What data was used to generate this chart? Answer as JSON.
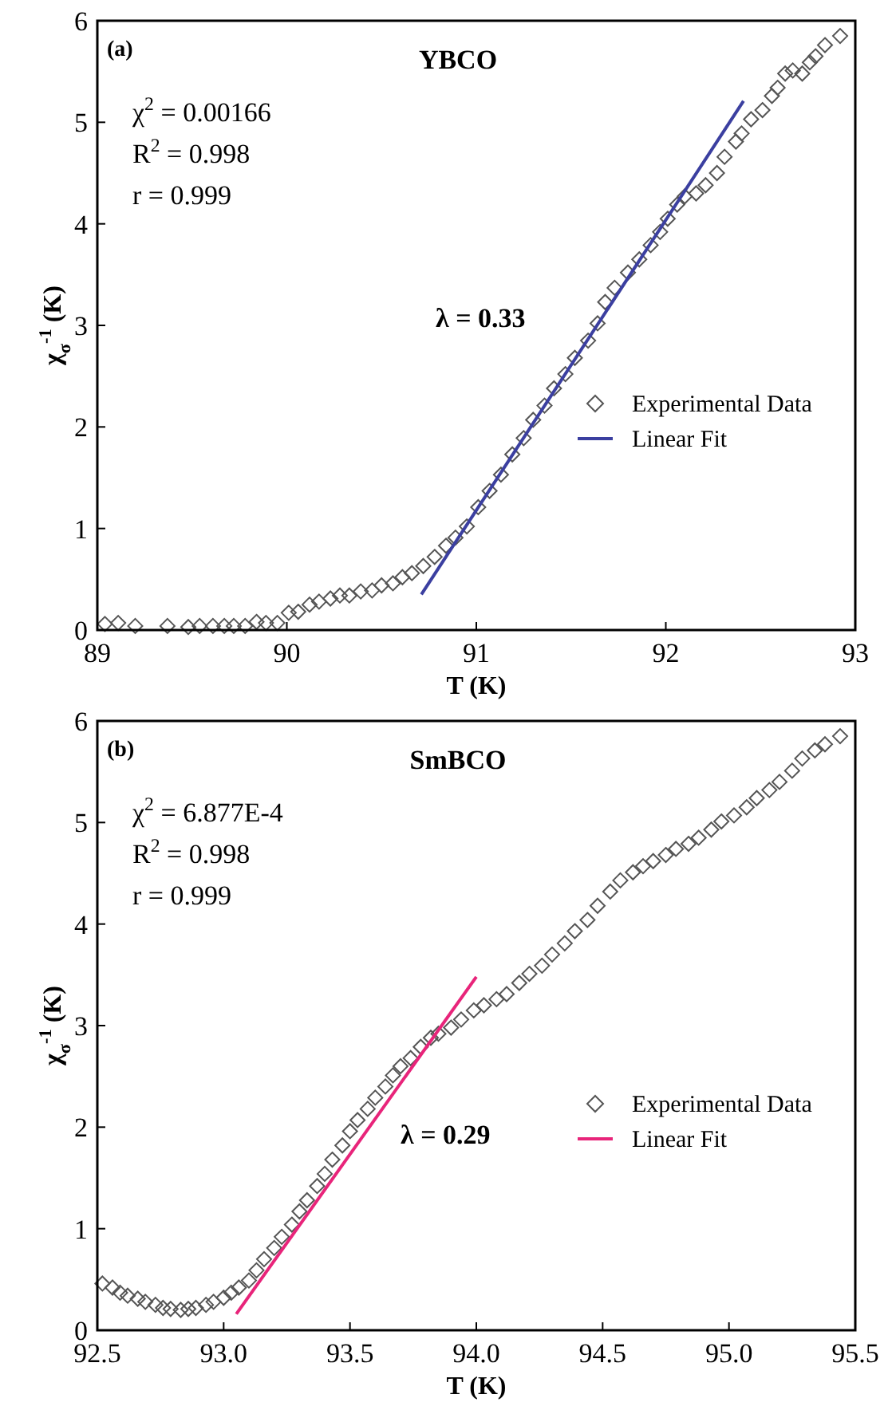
{
  "chart_data": [
    {
      "type": "scatter",
      "title": "YBCO",
      "xlabel": "T (K)",
      "ylabel": "χ$_{σ}$$^{-1}$ (K)",
      "xlim": [
        89,
        93
      ],
      "xticks": [
        89,
        90,
        91,
        92,
        93
      ],
      "ylim": [
        0,
        6
      ],
      "yticks": [
        0,
        1,
        2,
        3,
        4,
        5,
        6
      ],
      "grid": false,
      "legend": "right",
      "annotations": [
        "(a)",
        "χ$^{2}$ = 0.00166",
        "R$^{2}$ = 0.998",
        "r = 0.999",
        "λ = 0.33"
      ],
      "series": [
        {
          "name": "Experimental Data",
          "marker": "diamond",
          "color": "#555555",
          "x": [
            89.04,
            89.11,
            89.2,
            89.37,
            89.48,
            89.54,
            89.61,
            89.67,
            89.72,
            89.78,
            89.84,
            89.89,
            89.95,
            90.01,
            90.06,
            90.12,
            90.17,
            90.23,
            90.28,
            90.33,
            90.39,
            90.45,
            90.5,
            90.56,
            90.61,
            90.66,
            90.72,
            90.78,
            90.84,
            90.89,
            90.95,
            91.01,
            91.07,
            91.13,
            91.19,
            91.25,
            91.3,
            91.36,
            91.41,
            91.47,
            91.52,
            91.59,
            91.64,
            91.68,
            91.73,
            91.8,
            91.86,
            91.92,
            91.97,
            92.01,
            92.06,
            92.1,
            92.16,
            92.21,
            92.27,
            92.31,
            92.37,
            92.4,
            92.45,
            92.51,
            92.56,
            92.59,
            92.63,
            92.67,
            92.72,
            92.76,
            92.79,
            92.84,
            92.92
          ],
          "values": [
            0.06,
            0.07,
            0.04,
            0.04,
            0.03,
            0.04,
            0.04,
            0.04,
            0.04,
            0.04,
            0.08,
            0.07,
            0.07,
            0.17,
            0.18,
            0.25,
            0.28,
            0.31,
            0.34,
            0.34,
            0.38,
            0.39,
            0.44,
            0.46,
            0.52,
            0.56,
            0.63,
            0.72,
            0.83,
            0.91,
            1.02,
            1.21,
            1.37,
            1.53,
            1.73,
            1.89,
            2.07,
            2.21,
            2.38,
            2.52,
            2.68,
            2.85,
            3.02,
            3.23,
            3.37,
            3.52,
            3.65,
            3.79,
            3.92,
            4.05,
            4.19,
            4.27,
            4.3,
            4.38,
            4.5,
            4.66,
            4.81,
            4.89,
            5.03,
            5.12,
            5.26,
            5.34,
            5.48,
            5.51,
            5.48,
            5.59,
            5.65,
            5.76,
            5.85
          ]
        },
        {
          "name": "Linear Fit",
          "type": "line",
          "line_style": "solid",
          "color": "#3b3fa0",
          "x": [
            90.71,
            92.41
          ],
          "values": [
            0.35,
            5.21
          ]
        }
      ]
    },
    {
      "type": "scatter",
      "title": "SmBCO",
      "xlabel": "T (K)",
      "ylabel": "χ$_{σ}$$^{-1}$ (K)",
      "xlim": [
        92.5,
        95.5
      ],
      "xticks": [
        92.5,
        {
          "value": 93,
          "label": "93.0"
        },
        93.5,
        {
          "value": 94,
          "label": "94.0"
        },
        94.5,
        {
          "value": 95,
          "label": "95.0"
        },
        95.5
      ],
      "ylim": [
        0,
        6
      ],
      "yticks": [
        0,
        1,
        2,
        3,
        4,
        5,
        6
      ],
      "grid": false,
      "legend": "right",
      "annotations": [
        "(b)",
        "χ$^{2}$ = 6.877E-4",
        "R$^{2}$ = 0.998",
        "r = 0.999",
        "λ = 0.29"
      ],
      "series": [
        {
          "name": "Experimental Data",
          "marker": "diamond",
          "color": "#555555",
          "x": [
            92.52,
            92.56,
            92.59,
            92.62,
            92.66,
            92.69,
            92.73,
            92.76,
            92.79,
            92.83,
            92.86,
            92.89,
            92.93,
            92.96,
            93.0,
            93.03,
            93.06,
            93.1,
            93.13,
            93.16,
            93.2,
            93.23,
            93.27,
            93.3,
            93.33,
            93.37,
            93.4,
            93.43,
            93.47,
            93.5,
            93.53,
            93.57,
            93.6,
            93.64,
            93.67,
            93.7,
            93.74,
            93.78,
            93.82,
            93.85,
            93.9,
            93.94,
            93.99,
            94.03,
            94.08,
            94.12,
            94.17,
            94.21,
            94.26,
            94.3,
            94.35,
            94.39,
            94.44,
            94.48,
            94.53,
            94.57,
            94.62,
            94.66,
            94.7,
            94.75,
            94.79,
            94.84,
            94.88,
            94.93,
            94.97,
            95.02,
            95.07,
            95.11,
            95.16,
            95.2,
            95.25,
            95.29,
            95.34,
            95.38,
            95.44
          ],
          "values": [
            0.46,
            0.42,
            0.37,
            0.34,
            0.31,
            0.28,
            0.25,
            0.22,
            0.21,
            0.2,
            0.21,
            0.22,
            0.25,
            0.28,
            0.32,
            0.37,
            0.42,
            0.49,
            0.59,
            0.7,
            0.81,
            0.92,
            1.04,
            1.17,
            1.28,
            1.42,
            1.54,
            1.68,
            1.82,
            1.96,
            2.07,
            2.18,
            2.29,
            2.4,
            2.51,
            2.6,
            2.68,
            2.79,
            2.88,
            2.92,
            2.98,
            3.06,
            3.15,
            3.2,
            3.26,
            3.31,
            3.42,
            3.51,
            3.59,
            3.7,
            3.81,
            3.93,
            4.04,
            4.18,
            4.32,
            4.43,
            4.51,
            4.57,
            4.62,
            4.68,
            4.74,
            4.79,
            4.85,
            4.93,
            5.01,
            5.07,
            5.15,
            5.24,
            5.32,
            5.4,
            5.51,
            5.63,
            5.71,
            5.77,
            5.85
          ]
        },
        {
          "name": "Linear Fit",
          "type": "line",
          "line_style": "solid",
          "color": "#e8247a",
          "x": [
            93.05,
            94.0
          ],
          "values": [
            0.16,
            3.48
          ]
        }
      ]
    }
  ]
}
